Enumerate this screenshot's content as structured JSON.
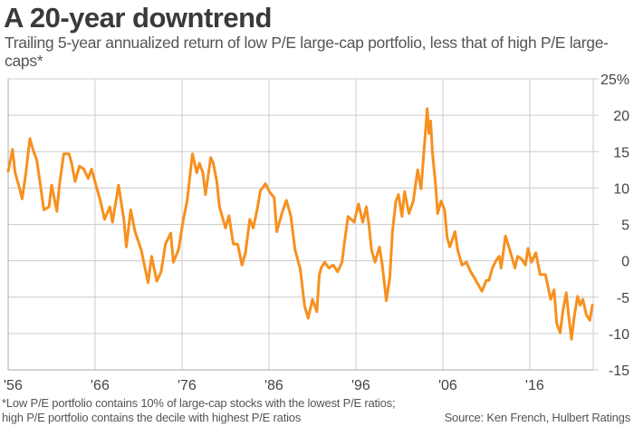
{
  "title": "A 20-year downtrend",
  "subtitle": "Trailing 5-year annualized return of low P/E large-cap portfolio, less that of high P/E large-caps*",
  "footnote": "*Low P/E portfolio contains 10% of large-cap stocks with the lowest P/E ratios; high P/E portfolio contains the decile with highest P/E ratios",
  "source": "Source: Ken French, Hulbert Ratings",
  "colors": {
    "line": "#f7901e",
    "grid": "#cccccc",
    "text": "#444444"
  },
  "chart_data": {
    "type": "line",
    "title": "A 20-year downtrend",
    "xlabel": "",
    "ylabel": "",
    "xlim": [
      1956,
      2023.3
    ],
    "ylim": [
      -15,
      25
    ],
    "grid": true,
    "x_ticks": [
      1956,
      1966,
      1976,
      1986,
      1996,
      2006,
      2016
    ],
    "x_tick_labels": [
      "'56",
      "'66",
      "'76",
      "'86",
      "'96",
      "'06",
      "'16"
    ],
    "y_ticks": [
      25,
      20,
      15,
      10,
      5,
      0,
      -5,
      -10,
      -15
    ],
    "y_tick_labels": [
      "25%",
      "20",
      "15",
      "10",
      "5",
      "0",
      "-5",
      "-10",
      "-15"
    ],
    "series": [
      {
        "x": [
          1956.0,
          1956.5,
          1956.8,
          1957.3,
          1957.6,
          1958.0,
          1958.5,
          1958.9,
          1959.3,
          1959.8,
          1960.1,
          1960.7,
          1961.0,
          1961.6,
          1961.9,
          1962.4,
          1963.0,
          1963.3,
          1963.7,
          1964.2,
          1964.7,
          1965.2,
          1965.6,
          1966.1,
          1966.6,
          1967.1,
          1967.7,
          1968.0,
          1968.7,
          1969.3,
          1969.6,
          1970.1,
          1970.6,
          1971.3,
          1972.1,
          1972.5,
          1973.1,
          1973.6,
          1974.1,
          1974.7,
          1975.0,
          1975.6,
          1976.1,
          1976.6,
          1977.2,
          1977.7,
          1978.0,
          1978.4,
          1978.7,
          1979.3,
          1979.6,
          1980.0,
          1980.3,
          1981.0,
          1981.4,
          1981.9,
          1982.4,
          1982.9,
          1983.3,
          1983.8,
          1984.2,
          1984.7,
          1985.0,
          1985.6,
          1986.1,
          1986.6,
          1986.9,
          1987.5,
          1988.0,
          1988.5,
          1989.0,
          1989.6,
          1990.1,
          1990.5,
          1991.0,
          1991.5,
          1991.8,
          1992.0,
          1992.4,
          1992.9,
          1993.4,
          1993.9,
          1994.4,
          1994.7,
          1995.1,
          1995.8,
          1996.3,
          1996.8,
          1997.2,
          1997.5,
          1997.8,
          1998.2,
          1998.7,
          1999.0,
          1999.4,
          1999.5,
          1999.9,
          2000.2,
          2000.6,
          2000.9,
          2001.3,
          2001.6,
          2002.1,
          2002.6,
          2003.1,
          2003.5,
          2003.8,
          2004.2,
          2004.4,
          2004.6,
          2004.8,
          2005.2,
          2005.4,
          2005.8,
          2006.2,
          2006.5,
          2006.8,
          2007.4,
          2007.7,
          2008.2,
          2008.7,
          2009.2,
          2009.8,
          2010.5,
          2011.0,
          2011.3,
          2011.7,
          2012.2,
          2012.5,
          2012.7,
          2013.2,
          2013.6,
          2014.3,
          2014.6,
          2015.1,
          2015.5,
          2015.8,
          2016.2,
          2016.7,
          2017.2,
          2017.8,
          2018.1,
          2018.4,
          2018.8,
          2019.1,
          2019.5,
          2019.8,
          2020.2,
          2020.5,
          2020.8,
          2021.1,
          2021.5,
          2021.8,
          2022.1,
          2022.5,
          2022.9,
          2023.2
        ],
        "y": [
          12.3,
          15.3,
          12.1,
          10,
          8.5,
          11.7,
          16.8,
          15.1,
          13.8,
          9.6,
          7,
          7.4,
          10.4,
          6.8,
          10.4,
          14.7,
          14.7,
          13.4,
          10.9,
          13,
          12.6,
          11.3,
          12.6,
          10.4,
          8.3,
          5.7,
          7.4,
          5.3,
          10.4,
          5.7,
          1.9,
          7,
          4,
          1.5,
          -3,
          0.6,
          -2.8,
          -1.5,
          2.3,
          3.8,
          -0.2,
          1.5,
          5.3,
          8.3,
          14.7,
          12.1,
          13.4,
          12.1,
          9.1,
          14.2,
          13.4,
          10.9,
          7.4,
          4.5,
          6.2,
          2.3,
          2.3,
          -0.6,
          1.1,
          5.7,
          4.5,
          7.4,
          9.6,
          10.6,
          9.4,
          8.7,
          4,
          6.6,
          8.3,
          6.2,
          1.5,
          -1.1,
          -6.2,
          -7.9,
          -5.3,
          -7,
          -1.9,
          -1,
          -0.2,
          -1,
          -0.6,
          -1.5,
          -0.2,
          2.7,
          6.1,
          5.3,
          7.8,
          5.3,
          7.4,
          4.9,
          1.5,
          -0.2,
          1.9,
          -0.2,
          -4.4,
          -5.5,
          -2.3,
          4,
          8.2,
          9.1,
          6.1,
          9.5,
          6.5,
          8.2,
          12.5,
          9.9,
          14.6,
          20.9,
          17.5,
          19.2,
          15,
          9.9,
          6.5,
          8.2,
          7,
          3.2,
          1.9,
          4,
          1.5,
          -0.6,
          -0.2,
          -1.5,
          -2.7,
          -4.2,
          -2.7,
          -2.7,
          -1,
          0.2,
          0.6,
          -1,
          3.4,
          1.9,
          -1,
          0.6,
          0.2,
          -0.6,
          1.7,
          -0.2,
          1.1,
          -1.9,
          -1.9,
          -3.6,
          -5.3,
          -4,
          -8.6,
          -9.9,
          -7,
          -4.4,
          -7.8,
          -10.8,
          -7.8,
          -4.9,
          -6.1,
          -5.3,
          -7.4,
          -8.2,
          -6.1
        ]
      }
    ]
  }
}
